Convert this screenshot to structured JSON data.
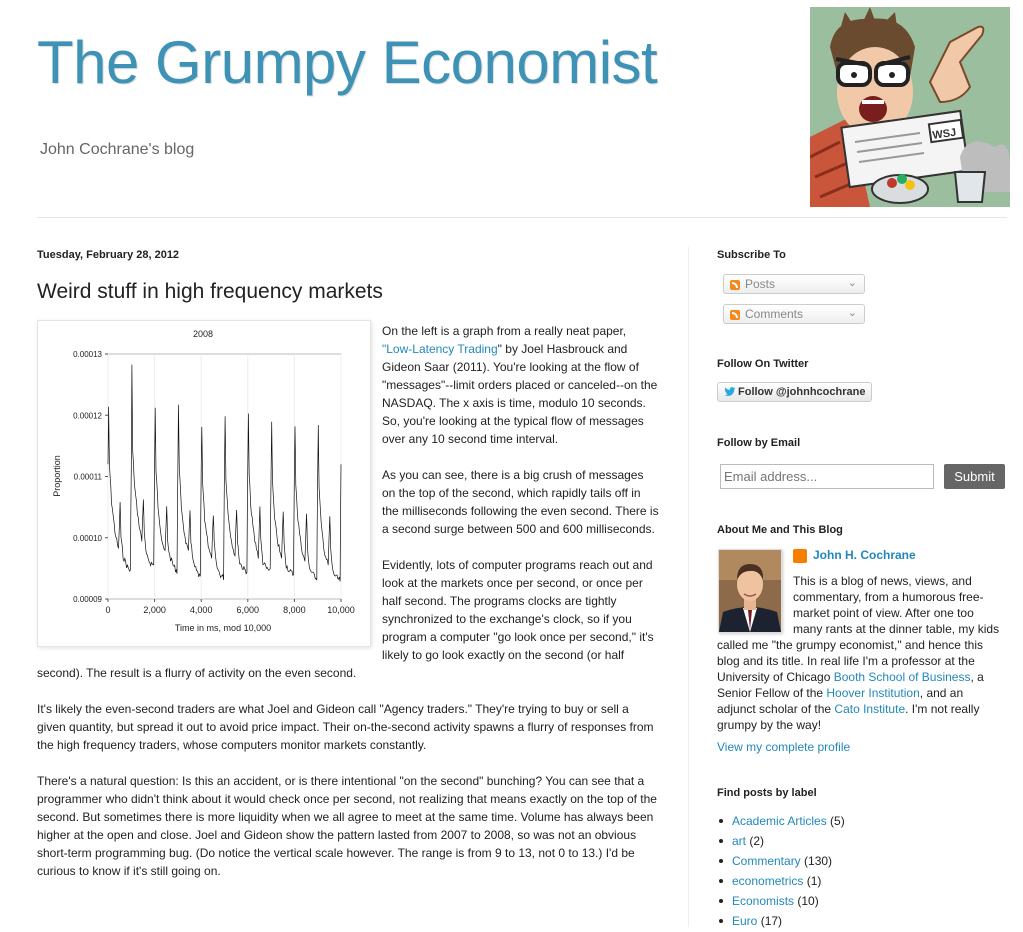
{
  "header": {
    "title": "The Grumpy Economist",
    "description": "John Cochrane's blog",
    "newspaper_label": "WSJ"
  },
  "post": {
    "date": "Tuesday, February 28, 2012",
    "title": "Weird stuff in high frequency markets",
    "p1_a": "On the left is a graph from a really neat paper, ",
    "p1_link": "\"Low-Latency Trading",
    "p1_b": "\" by Joel Hasbrouck and Gideon Saar (2011). You're looking at the flow of \"messages\"--limit orders placed or canceled--on the NASDAQ.  The x axis is time, modulo 10 seconds. So, you're looking at the typical flow of messages over any 10 second time interval.",
    "p2": "As you can see, there is a big crush of messages on the top of the second, which rapidly tails off in the milliseconds following the even second. There is a second surge between 500 and 600 milliseconds.",
    "p3": "Evidently, lots of computer programs reach out and look at the markets once per second, or once per half second. The programs clocks are tightly synchronized to the exchange's clock, so if you program a computer \"go look once per second,\" it's likely to go look exactly on the second (or half second). The result is a flurry of activity on the even second.",
    "p4": " It's likely the even-second traders are what Joel and Gideon call \"Agency traders.\" They're trying to buy or sell a given quantity, but spread it out to avoid price impact. Their on-the-second activity spawns a flurry of responses from the high frequency traders, whose computers monitor markets constantly.",
    "p5": "There's a natural question: Is this an accident, or is there intentional \"on the second\" bunching? You can see that a programmer who didn't think about it would check once per second, not realizing that means exactly on the top of the second. But sometimes there is more liquidity when we all agree to meet at the same time. Volume has always been higher at the open and close.  Joel and Gideon show the pattern lasted from 2007 to 2008, so was not an obvious short-term programming bug.  (Do notice the vertical scale however. The range is from 9 to 13, not 0 to 13.) I'd be curious to know if it's still going on."
  },
  "chart_data": {
    "type": "line",
    "title": "2008",
    "xlabel": "Time in ms, mod 10,000",
    "ylabel": "Proportion",
    "xlim": [
      0,
      10000
    ],
    "ylim": [
      9e-05,
      0.00013
    ],
    "x_ticks": [
      0,
      2000,
      4000,
      6000,
      8000,
      10000
    ],
    "x_tick_labels": [
      "0",
      "2,000",
      "4,000",
      "6,000",
      "8,000",
      "10,000"
    ],
    "y_ticks": [
      9e-05,
      0.0001,
      0.00011,
      0.00012,
      0.00013
    ],
    "y_tick_labels": [
      "0.00009",
      "0.00010",
      "0.00011",
      "0.00012",
      "0.00013"
    ],
    "series": [
      {
        "x": [
          0,
          25,
          60,
          150,
          300,
          450,
          520,
          560,
          650,
          800,
          960,
          1000,
          1025,
          1060,
          1150,
          1300,
          1450,
          1520,
          1560,
          1650,
          1800,
          1960,
          2000,
          2025,
          2060,
          2150,
          2300,
          2450,
          2520,
          2560,
          2650,
          2800,
          2960,
          3000,
          3025,
          3060,
          3150,
          3300,
          3450,
          3520,
          3560,
          3650,
          3800,
          3960,
          4000,
          4025,
          4060,
          4150,
          4300,
          4450,
          4520,
          4560,
          4650,
          4800,
          4960,
          5000,
          5025,
          5060,
          5150,
          5300,
          5450,
          5520,
          5560,
          5650,
          5800,
          5960,
          6000,
          6025,
          6060,
          6150,
          6300,
          6450,
          6520,
          6560,
          6650,
          6800,
          6960,
          7000,
          7025,
          7060,
          7150,
          7300,
          7450,
          7520,
          7560,
          7650,
          7800,
          7960,
          8000,
          8025,
          8060,
          8150,
          8300,
          8450,
          8520,
          8560,
          8650,
          8800,
          8960,
          9000,
          9025,
          9060,
          9150,
          9300,
          9450,
          9520,
          9560,
          9650,
          9800,
          9960,
          10000
        ],
        "y": [
          0.000112,
          0.000121,
          0.000112,
          0.000106,
          0.000101,
          9.8e-05,
          0.0001055,
          0.0001,
          9.7e-05,
          9.55e-05,
          9.45e-05,
          0.000112,
          0.000128,
          0.000114,
          0.000108,
          0.000103,
          9.95e-05,
          0.0001065,
          0.0001005,
          9.7e-05,
          9.6e-05,
          9.55e-05,
          0.000112,
          0.000121,
          0.000111,
          0.000105,
          0.0001,
          9.75e-05,
          0.000105,
          9.95e-05,
          9.7e-05,
          9.55e-05,
          9.45e-05,
          0.000112,
          0.000122,
          0.000111,
          0.000105,
          0.0001,
          9.75e-05,
          0.0001045,
          9.95e-05,
          9.6e-05,
          9.45e-05,
          9.35e-05,
          0.000111,
          0.000118,
          0.000109,
          0.000103,
          9.9e-05,
          9.65e-05,
          0.000104,
          9.9e-05,
          9.55e-05,
          9.4e-05,
          9.35e-05,
          0.000112,
          0.00012,
          0.00011,
          0.000104,
          9.95e-05,
          9.7e-05,
          0.000105,
          9.95e-05,
          9.6e-05,
          9.5e-05,
          9.45e-05,
          0.000112,
          0.00012,
          0.00011,
          0.000104,
          9.95e-05,
          9.7e-05,
          0.000105,
          9.95e-05,
          9.6e-05,
          9.5e-05,
          9.45e-05,
          0.000111,
          0.000119,
          0.000109,
          0.000103,
          9.9e-05,
          9.65e-05,
          0.0001045,
          9.9e-05,
          9.55e-05,
          9.45e-05,
          9.4e-05,
          0.000111,
          0.000118,
          0.000109,
          0.000103,
          9.85e-05,
          9.6e-05,
          0.000104,
          9.85e-05,
          9.5e-05,
          9.4e-05,
          9.35e-05,
          0.000111,
          0.000118,
          0.000108,
          0.000102,
          9.75e-05,
          9.55e-05,
          0.0001035,
          9.8e-05,
          9.45e-05,
          9.35e-05,
          9.3e-05,
          0.000112
        ]
      }
    ]
  },
  "sidebar": {
    "subscribe_title": "Subscribe To",
    "posts_label": "Posts",
    "comments_label": "Comments",
    "twitter_title": "Follow On Twitter",
    "twitter_button": "Follow @johnhcochrane",
    "email_title": "Follow by Email",
    "email_placeholder": "Email address...",
    "submit_label": "Submit",
    "about_title": "About Me and This Blog",
    "about_name": "John H. Cochrane",
    "about_a": "This is a blog of news, views, and commentary, from a humorous free-market point of view. After one too many rants at the dinner table, my kids called me \"the grumpy economist,\" and hence this blog and its title. In real life I'm a professor at the University of Chicago ",
    "about_link1": "Booth School of Business",
    "about_b": ", a Senior Fellow of the ",
    "about_link2": "Hoover Institution",
    "about_c": ", and an adjunct scholar of the ",
    "about_link3": "Cato Institute",
    "about_d": ". I'm not really grumpy by the way!",
    "profile_link": "View my complete profile",
    "labels_title": "Find posts by label",
    "labels": [
      {
        "name": "Academic Articles",
        "count": "(5)"
      },
      {
        "name": "art",
        "count": "(2)"
      },
      {
        "name": "Commentary",
        "count": "(130)"
      },
      {
        "name": "econometrics",
        "count": "(1)"
      },
      {
        "name": "Economists",
        "count": "(10)"
      },
      {
        "name": "Euro",
        "count": "(17)"
      }
    ]
  }
}
